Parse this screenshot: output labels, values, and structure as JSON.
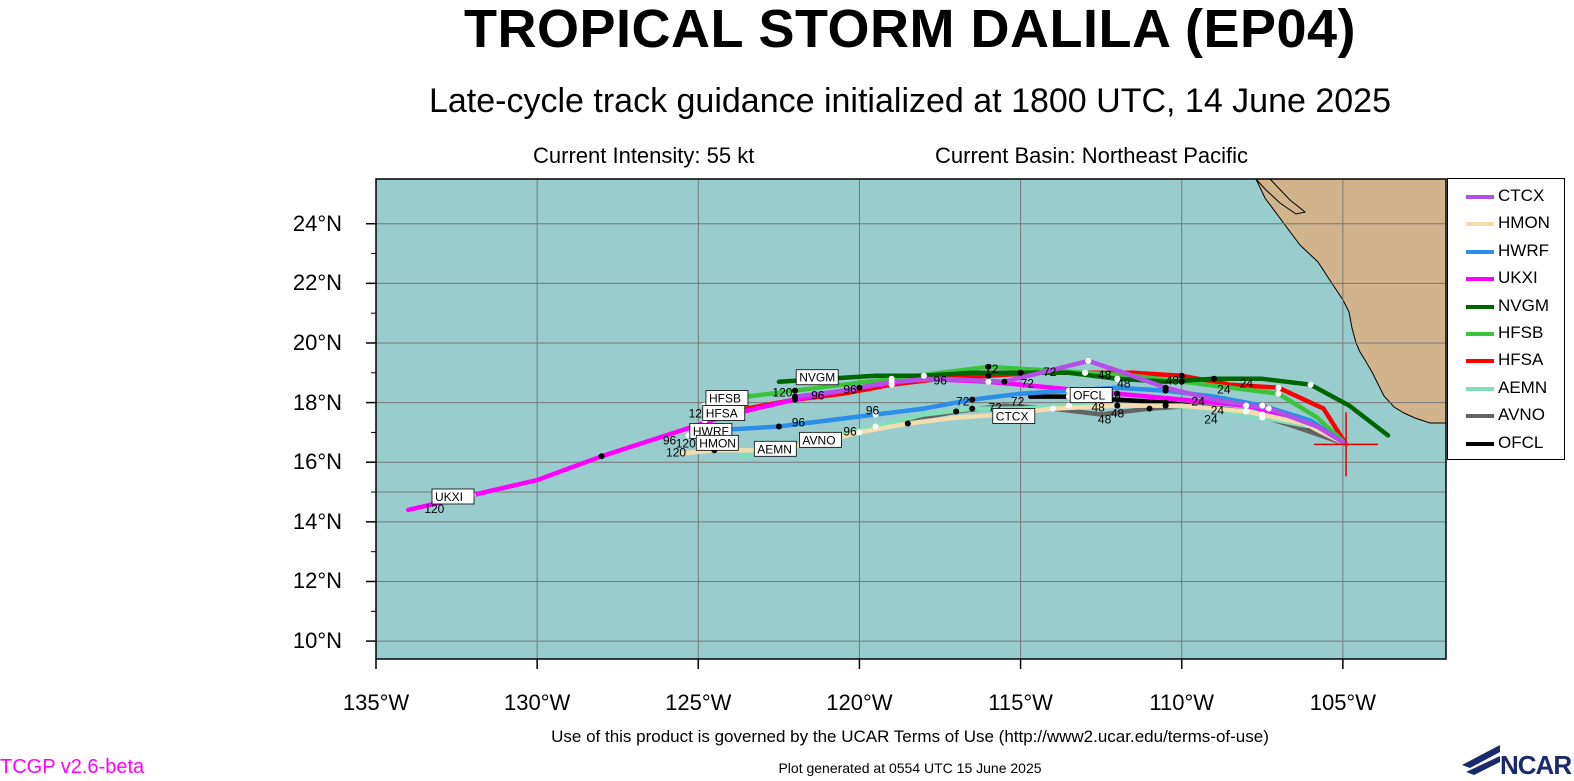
{
  "header": {
    "title": "TROPICAL STORM DALILA (EP04)",
    "subtitle": "Late-cycle track guidance initialized at 1800 UTC, 14 June 2025",
    "intensity": "Current Intensity: 55 kt",
    "basin": "Current Basin: Northeast Pacific"
  },
  "axes": {
    "lat_labels": [
      "24°N",
      "22°N",
      "20°N",
      "18°N",
      "16°N",
      "14°N",
      "12°N",
      "10°N"
    ],
    "lat_values": [
      24,
      22,
      20,
      18,
      16,
      14,
      12,
      10
    ],
    "lon_labels": [
      "135°W",
      "130°W",
      "125°W",
      "120°W",
      "115°W",
      "110°W",
      "105°W"
    ],
    "lon_values": [
      -135,
      -130,
      -125,
      -120,
      -115,
      -110,
      -105
    ]
  },
  "map": {
    "lon_range": [
      -135,
      -101.8
    ],
    "lat_range": [
      9.4,
      25.5
    ],
    "ocean_color": "#99cdcd",
    "land_color": "#d2b48c",
    "grid_color": "#777777",
    "storm_position": {
      "lon": -104.9,
      "lat": 16.6
    }
  },
  "chart_data": {
    "type": "map-tracks",
    "series": [
      {
        "name": "CTCX",
        "color": "#b44fe8",
        "points": [
          [
            -104.9,
            16.6
          ],
          [
            -105.8,
            17.2
          ],
          [
            -107.3,
            17.8
          ],
          [
            -109,
            18.1
          ],
          [
            -110.5,
            18.5
          ],
          [
            -111.8,
            19.0
          ],
          [
            -112.9,
            19.4
          ],
          [
            -114,
            19.1
          ],
          [
            -115.5,
            18.7
          ],
          [
            -117.5,
            18.8
          ],
          [
            -119,
            18.7
          ],
          [
            -120.5,
            18.4
          ],
          [
            -122,
            18.2
          ]
        ]
      },
      {
        "name": "HMON",
        "color": "#f3dcb0",
        "points": [
          [
            -104.9,
            16.6
          ],
          [
            -106.2,
            17.3
          ],
          [
            -108,
            17.7
          ],
          [
            -110,
            17.9
          ],
          [
            -112,
            17.9
          ],
          [
            -114,
            17.8
          ],
          [
            -115.5,
            17.6
          ],
          [
            -117,
            17.5
          ],
          [
            -118.5,
            17.3
          ],
          [
            -120,
            17.0
          ],
          [
            -121.5,
            16.6
          ],
          [
            -123,
            16.4
          ],
          [
            -124.5,
            16.4
          ],
          [
            -125.5,
            16.3
          ]
        ]
      },
      {
        "name": "HWRF",
        "color": "#2b8ee8",
        "points": [
          [
            -104.9,
            16.6
          ],
          [
            -106,
            17.4
          ],
          [
            -107.5,
            17.9
          ],
          [
            -109,
            18.2
          ],
          [
            -110.5,
            18.4
          ],
          [
            -112,
            18.5
          ],
          [
            -113.5,
            18.4
          ],
          [
            -115,
            18.3
          ],
          [
            -116.5,
            18.1
          ],
          [
            -118,
            17.8
          ],
          [
            -119.5,
            17.6
          ],
          [
            -121,
            17.4
          ],
          [
            -122.5,
            17.2
          ],
          [
            -124,
            17.1
          ],
          [
            -125.3,
            16.9
          ]
        ]
      },
      {
        "name": "UKXI",
        "color": "#ff00ff",
        "points": [
          [
            -104.9,
            16.6
          ],
          [
            -106.5,
            17.5
          ],
          [
            -108,
            17.9
          ],
          [
            -110,
            18.1
          ],
          [
            -112,
            18.3
          ],
          [
            -114,
            18.5
          ],
          [
            -116,
            18.7
          ],
          [
            -118,
            18.8
          ],
          [
            -120,
            18.5
          ],
          [
            -122,
            18.1
          ],
          [
            -124,
            17.6
          ],
          [
            -126,
            16.9
          ],
          [
            -128,
            16.2
          ],
          [
            -130,
            15.4
          ],
          [
            -132,
            14.9
          ],
          [
            -134,
            14.4
          ]
        ]
      },
      {
        "name": "NVGM",
        "color": "#006400",
        "points": [
          [
            -103.6,
            16.9
          ],
          [
            -104.8,
            17.9
          ],
          [
            -106,
            18.6
          ],
          [
            -107.5,
            18.8
          ],
          [
            -109,
            18.8
          ],
          [
            -110.5,
            18.7
          ],
          [
            -112,
            18.8
          ],
          [
            -113.5,
            19.0
          ],
          [
            -115,
            19.0
          ],
          [
            -116.5,
            19.0
          ],
          [
            -118,
            18.9
          ],
          [
            -119.5,
            18.9
          ],
          [
            -121,
            18.8
          ],
          [
            -122.5,
            18.7
          ]
        ]
      },
      {
        "name": "HFSB",
        "color": "#3cc33c",
        "points": [
          [
            -104.9,
            16.6
          ],
          [
            -105.8,
            17.5
          ],
          [
            -107,
            18.3
          ],
          [
            -108.5,
            18.5
          ],
          [
            -110,
            18.7
          ],
          [
            -111.5,
            18.9
          ],
          [
            -113,
            19.0
          ],
          [
            -114.5,
            19.1
          ],
          [
            -116,
            19.2
          ],
          [
            -117.5,
            19.0
          ],
          [
            -119,
            18.8
          ],
          [
            -120.5,
            18.6
          ],
          [
            -122,
            18.4
          ],
          [
            -123.5,
            18.2
          ],
          [
            -124.8,
            17.9
          ]
        ]
      },
      {
        "name": "HFSA",
        "color": "#ff0000",
        "points": [
          [
            -104.9,
            16.6
          ],
          [
            -105.6,
            17.8
          ],
          [
            -107,
            18.5
          ],
          [
            -108.5,
            18.6
          ],
          [
            -110,
            18.9
          ],
          [
            -111.5,
            19.0
          ],
          [
            -113,
            19.0
          ],
          [
            -114.5,
            19.0
          ],
          [
            -116,
            18.9
          ],
          [
            -117.5,
            18.8
          ],
          [
            -119,
            18.6
          ],
          [
            -120.5,
            18.3
          ],
          [
            -122,
            18.1
          ],
          [
            -123.5,
            17.8
          ],
          [
            -124.8,
            17.4
          ]
        ]
      },
      {
        "name": "AEMN",
        "color": "#7fe0b8",
        "points": [
          [
            -104.9,
            16.6
          ],
          [
            -106,
            17.2
          ],
          [
            -107.5,
            17.5
          ],
          [
            -109,
            17.8
          ],
          [
            -110.5,
            17.9
          ],
          [
            -112,
            17.9
          ],
          [
            -113.5,
            17.9
          ],
          [
            -115,
            17.8
          ],
          [
            -116.5,
            17.8
          ],
          [
            -118,
            17.6
          ],
          [
            -119.5,
            17.2
          ],
          [
            -121,
            16.8
          ],
          [
            -122.5,
            16.4
          ],
          [
            -123.7,
            16.2
          ]
        ]
      },
      {
        "name": "AVNO",
        "color": "#646464",
        "points": [
          [
            -104.9,
            16.6
          ],
          [
            -106.5,
            17.2
          ],
          [
            -108,
            17.7
          ],
          [
            -109.5,
            17.9
          ],
          [
            -111,
            17.8
          ],
          [
            -112.5,
            17.6
          ],
          [
            -114,
            17.8
          ],
          [
            -115.5,
            17.9
          ],
          [
            -117,
            17.7
          ],
          [
            -118.5,
            17.4
          ],
          [
            -120,
            17.0
          ],
          [
            -121.5,
            16.7
          ]
        ]
      },
      {
        "name": "OFCL",
        "color": "#000000",
        "points": [
          [
            -104.9,
            16.6
          ],
          [
            -106,
            17.1
          ],
          [
            -107.5,
            17.6
          ],
          [
            -109,
            17.8
          ],
          [
            -110.5,
            18.0
          ],
          [
            -112,
            18.1
          ],
          [
            -113.5,
            18.2
          ],
          [
            -114.7,
            18.2
          ]
        ]
      }
    ],
    "tags": [
      {
        "text": "UKXI",
        "lon": -133.2,
        "lat": 14.7
      },
      {
        "text": "HWRF",
        "lon": -125.2,
        "lat": 16.9
      },
      {
        "text": "HMON",
        "lon": -125.0,
        "lat": 16.5
      },
      {
        "text": "HFSB",
        "lon": -124.7,
        "lat": 18.0
      },
      {
        "text": "HFSA",
        "lon": -124.8,
        "lat": 17.5
      },
      {
        "text": "NVGM",
        "lon": -121.9,
        "lat": 18.7
      },
      {
        "text": "AEMN",
        "lon": -123.2,
        "lat": 16.3
      },
      {
        "text": "AVNO",
        "lon": -121.8,
        "lat": 16.6
      },
      {
        "text": "CTCX",
        "lon": -115.8,
        "lat": 17.4
      },
      {
        "text": "OFCL",
        "lon": -113.4,
        "lat": 18.1
      }
    ],
    "hour_labels": [
      {
        "text": "120",
        "lon": -133.5,
        "lat": 14.3
      },
      {
        "text": "96",
        "lon": -126.1,
        "lat": 16.6
      },
      {
        "text": "120",
        "lon": -125.7,
        "lat": 16.5
      },
      {
        "text": "120",
        "lon": -126.0,
        "lat": 16.2
      },
      {
        "text": "120",
        "lon": -125.3,
        "lat": 17.5
      },
      {
        "text": "120",
        "lon": -122.7,
        "lat": 18.2
      },
      {
        "text": "96",
        "lon": -121.5,
        "lat": 18.1
      },
      {
        "text": "96",
        "lon": -120.5,
        "lat": 18.3
      },
      {
        "text": "96",
        "lon": -122.1,
        "lat": 17.2
      },
      {
        "text": "96",
        "lon": -119.8,
        "lat": 17.6
      },
      {
        "text": "96",
        "lon": -120.5,
        "lat": 16.9
      },
      {
        "text": "96",
        "lon": -121.0,
        "lat": 16.6
      },
      {
        "text": "96",
        "lon": -117.7,
        "lat": 18.6
      },
      {
        "text": "72",
        "lon": -117.0,
        "lat": 17.9
      },
      {
        "text": "72",
        "lon": -116.1,
        "lat": 19.0
      },
      {
        "text": "72",
        "lon": -115.0,
        "lat": 18.5
      },
      {
        "text": "72",
        "lon": -114.3,
        "lat": 18.9
      },
      {
        "text": "72",
        "lon": -116.0,
        "lat": 17.7
      },
      {
        "text": "72",
        "lon": -115.3,
        "lat": 17.9
      },
      {
        "text": "48",
        "lon": -112.6,
        "lat": 18.8
      },
      {
        "text": "48",
        "lon": -112.0,
        "lat": 18.5
      },
      {
        "text": "48",
        "lon": -110.5,
        "lat": 18.6
      },
      {
        "text": "48",
        "lon": -112.3,
        "lat": 18.0
      },
      {
        "text": "48",
        "lon": -112.8,
        "lat": 17.7
      },
      {
        "text": "48",
        "lon": -112.2,
        "lat": 17.5
      },
      {
        "text": "48",
        "lon": -112.6,
        "lat": 17.3
      },
      {
        "text": "24",
        "lon": -108.9,
        "lat": 18.3
      },
      {
        "text": "24",
        "lon": -108.2,
        "lat": 18.5
      },
      {
        "text": "24",
        "lon": -109.7,
        "lat": 17.9
      },
      {
        "text": "24",
        "lon": -109.1,
        "lat": 17.6
      },
      {
        "text": "24",
        "lon": -109.3,
        "lat": 17.3
      }
    ]
  },
  "footer": {
    "terms": "Use of this product is governed by the UCAR Terms of Use (http://www2.ucar.edu/terms-of-use)",
    "generated": "Plot generated at 0554 UTC   15 June 2025",
    "version": "TCGP v2.6-beta",
    "logo": "NCAR"
  }
}
